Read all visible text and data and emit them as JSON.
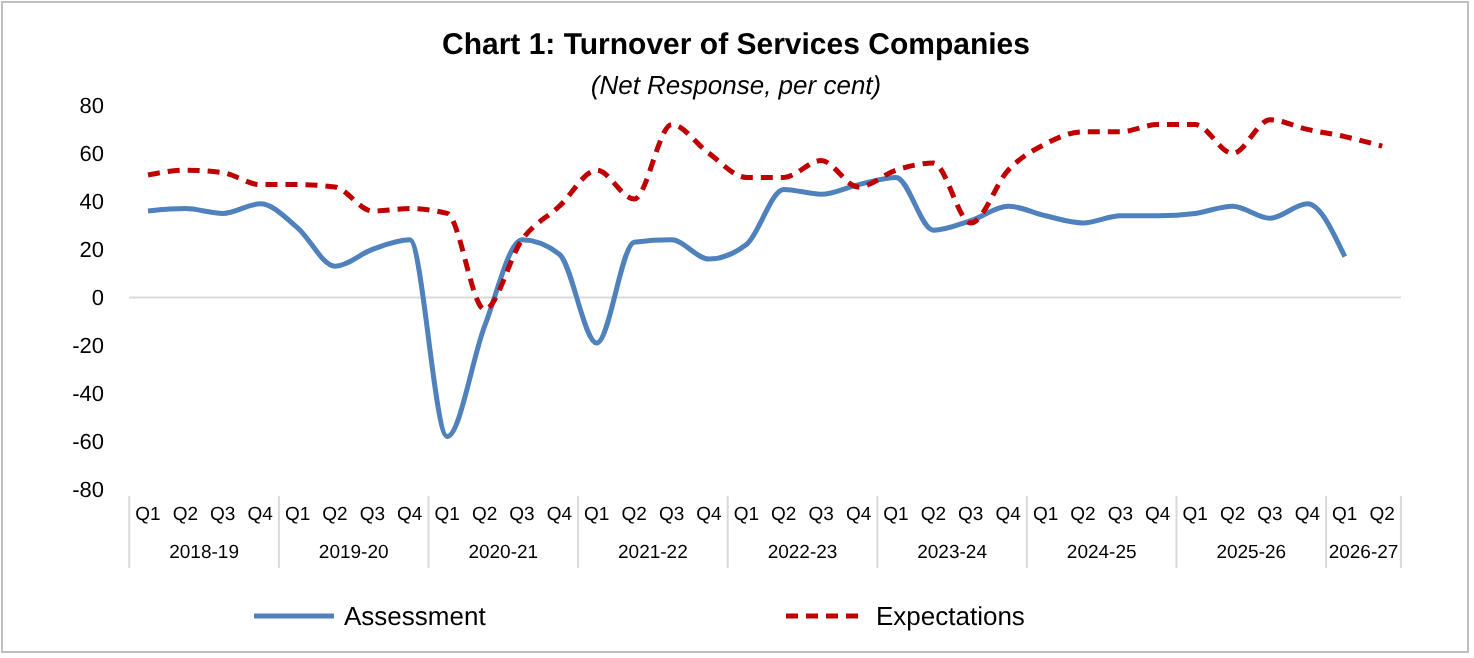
{
  "chart_data": {
    "type": "line",
    "title": "Chart 1: Turnover of Services Companies",
    "subtitle": "(Net Response, per cent)",
    "categories": [
      "Q1",
      "Q2",
      "Q3",
      "Q4",
      "Q1",
      "Q2",
      "Q3",
      "Q4",
      "Q1",
      "Q2",
      "Q3",
      "Q4",
      "Q1",
      "Q2",
      "Q3",
      "Q4",
      "Q1",
      "Q2",
      "Q3",
      "Q4",
      "Q1",
      "Q2",
      "Q3",
      "Q4",
      "Q1",
      "Q2",
      "Q3",
      "Q4",
      "Q1",
      "Q2",
      "Q3",
      "Q4",
      "Q1",
      "Q2"
    ],
    "annotations": [
      "2018-19",
      "2019-20",
      "2020-21",
      "2021-22",
      "2022-23",
      "2023-24",
      "2024-25",
      "2025-26",
      "2026-27"
    ],
    "series": [
      {
        "name": "Assessment",
        "color": "#4f81bd",
        "line_style": "solid",
        "values": [
          36,
          37,
          35,
          39,
          29,
          13,
          20,
          24,
          -58,
          -12,
          24,
          18,
          -19,
          23,
          24,
          16,
          22,
          45,
          43,
          47,
          50,
          28,
          32,
          38,
          34,
          31,
          34,
          34,
          35,
          38,
          33,
          39,
          17,
          null
        ]
      },
      {
        "name": "Expectations",
        "color": "#c00000",
        "line_style": "dashed",
        "values": [
          51,
          53,
          52,
          47,
          47,
          46,
          36,
          37,
          35,
          -5,
          24,
          38,
          53,
          41,
          72,
          60,
          50,
          50,
          57,
          46,
          53,
          56,
          31,
          53,
          64,
          69,
          69,
          72,
          72,
          60,
          74,
          70,
          67,
          63
        ]
      }
    ],
    "ylim": [
      -80,
      80
    ],
    "yticks": [
      -80,
      -60,
      -40,
      -20,
      0,
      20,
      40,
      60,
      80
    ],
    "legend": "bottom",
    "marker": "none"
  }
}
